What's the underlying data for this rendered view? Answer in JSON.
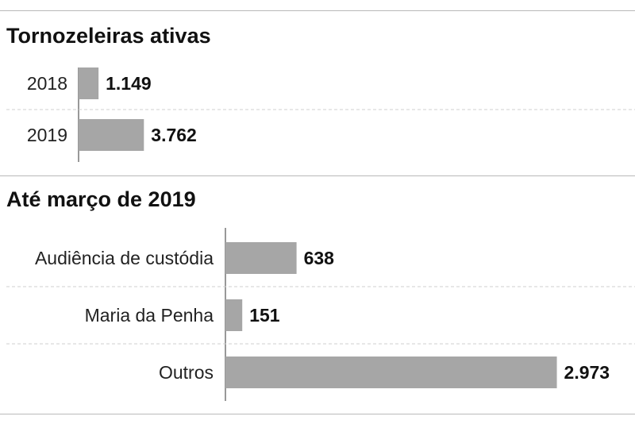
{
  "chart_data": [
    {
      "type": "bar",
      "orientation": "horizontal",
      "title": "Tornozeleiras ativas",
      "categories": [
        "2018",
        "2019"
      ],
      "values": [
        1149,
        3762
      ],
      "value_labels": [
        "1.149",
        "3.762"
      ],
      "xlim": [
        0,
        32000
      ],
      "grid": false,
      "bar_color": "#a6a6a6"
    },
    {
      "type": "bar",
      "orientation": "horizontal",
      "title": "Até março de 2019",
      "categories": [
        "Audiência de custódia",
        "Maria da Penha",
        "Outros"
      ],
      "values": [
        638,
        151,
        2973
      ],
      "value_labels": [
        "638",
        "151",
        "2.973"
      ],
      "xlim": [
        0,
        3560
      ],
      "grid": false,
      "bar_color": "#a6a6a6"
    }
  ]
}
